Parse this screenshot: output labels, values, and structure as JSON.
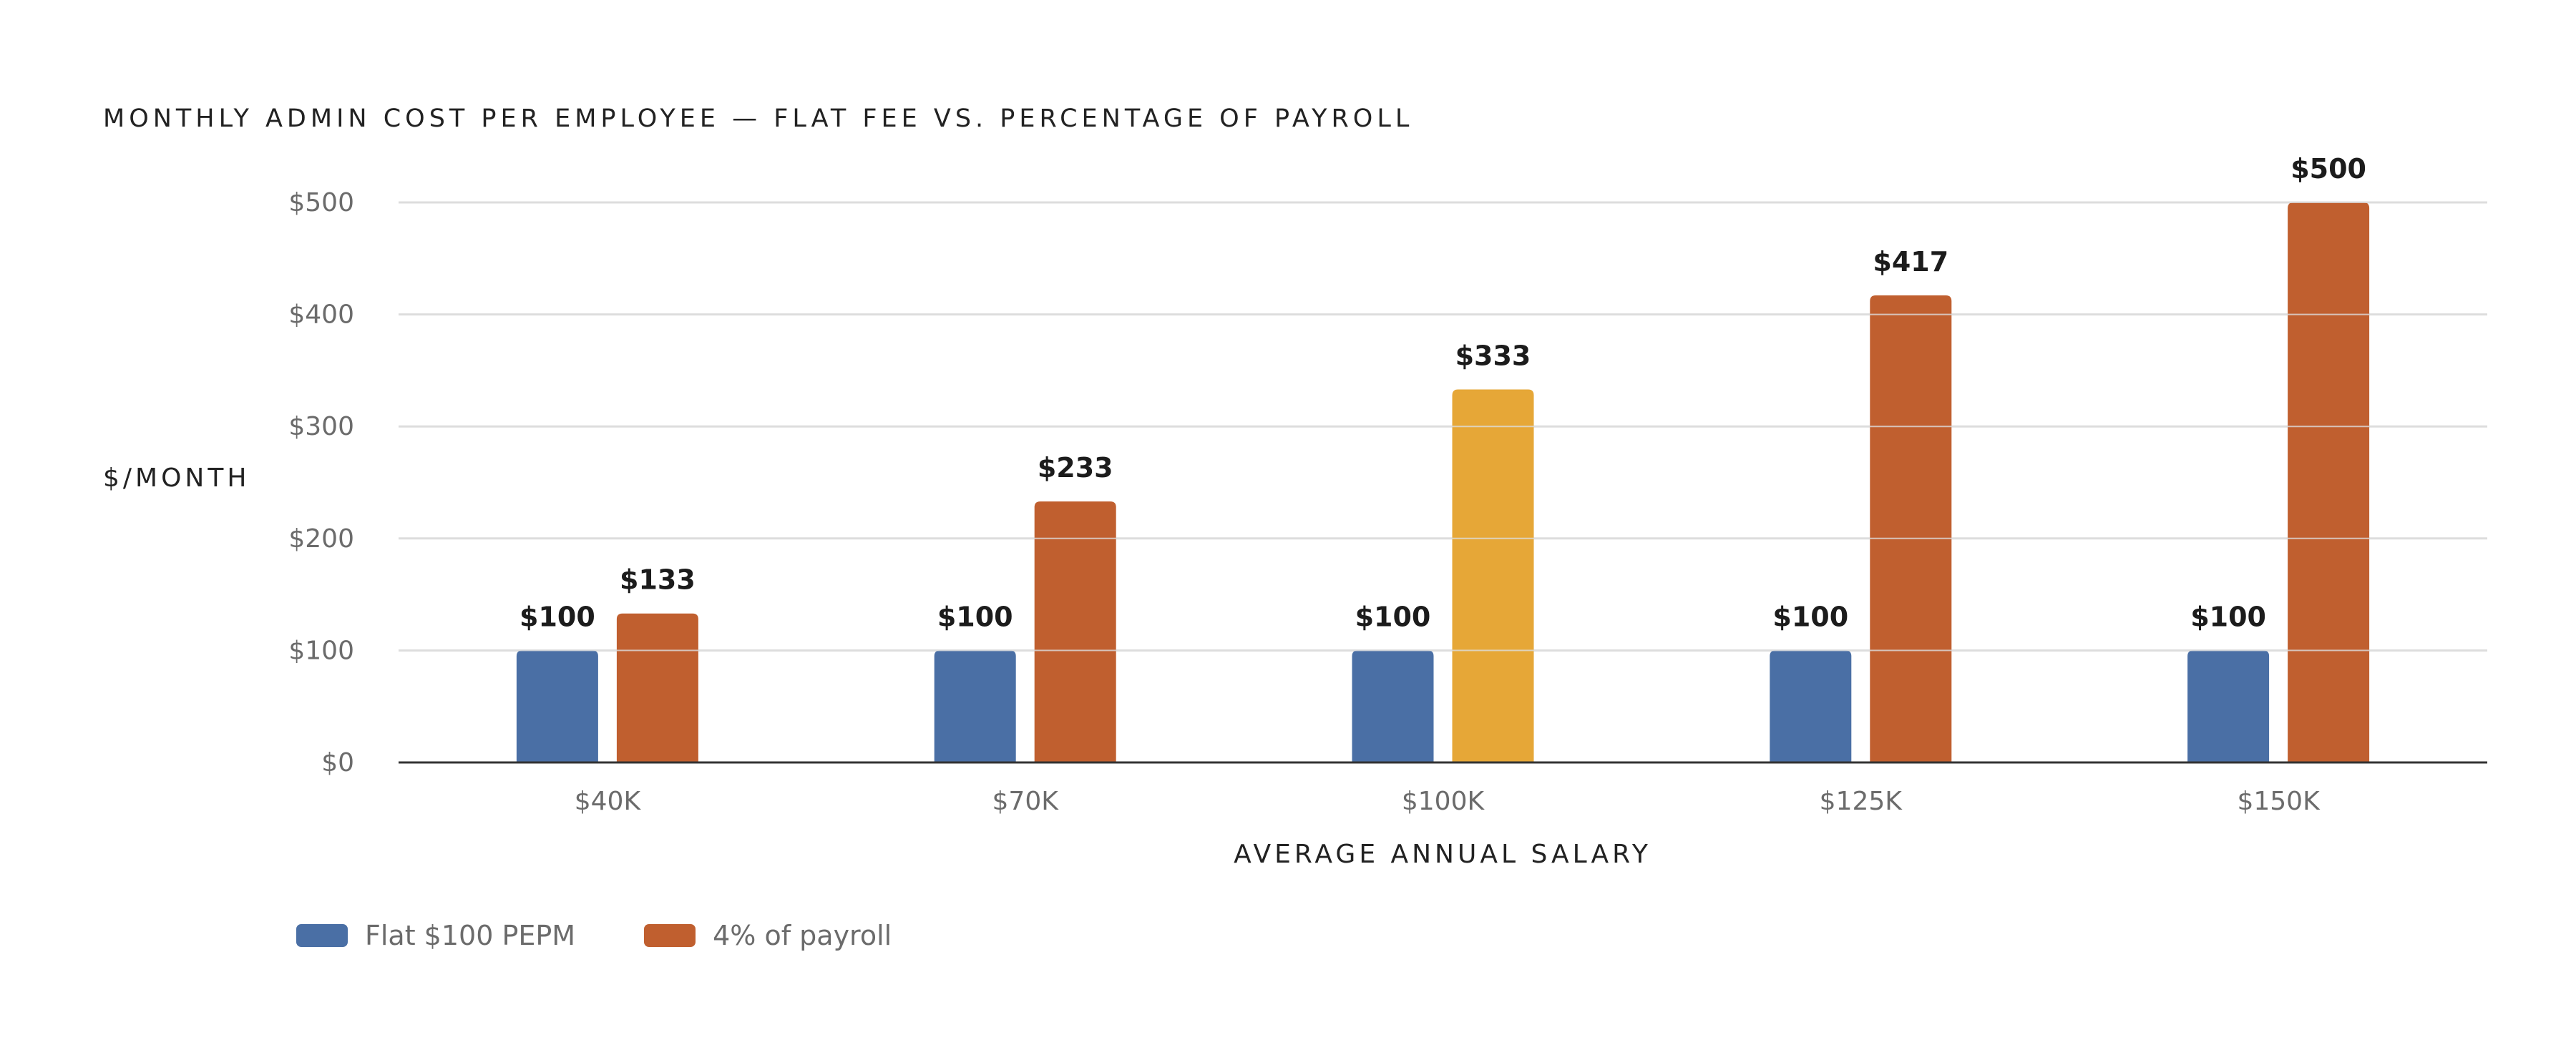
{
  "chart_data": {
    "type": "bar",
    "title": "MONTHLY ADMIN COST PER EMPLOYEE — FLAT FEE VS. PERCENTAGE OF PAYROLL",
    "xlabel": "AVERAGE ANNUAL SALARY",
    "ylabel": "$/MONTH",
    "categories": [
      "$40K",
      "$70K",
      "$100K",
      "$125K",
      "$150K"
    ],
    "series": [
      {
        "name": "Flat $100 PEPM",
        "color": "#4a6fa5",
        "values": [
          100,
          100,
          100,
          100,
          100
        ],
        "labels": [
          "$100",
          "$100",
          "$100",
          "$100",
          "$100"
        ]
      },
      {
        "name": "4% of payroll",
        "color": "#c05f2f",
        "values": [
          133,
          233,
          333,
          417,
          500
        ],
        "labels": [
          "$133",
          "$233",
          "$333",
          "$417",
          "$500"
        ]
      }
    ],
    "highlight": {
      "series": 1,
      "category": 2,
      "color": "#e6a737"
    },
    "ylim": [
      0,
      500
    ],
    "yticks": [
      "$0",
      "$100",
      "$200",
      "$300",
      "$400",
      "$500"
    ],
    "ytick_values": [
      0,
      100,
      200,
      300,
      400,
      500
    ],
    "grid": true,
    "legend": "bottom-left"
  }
}
